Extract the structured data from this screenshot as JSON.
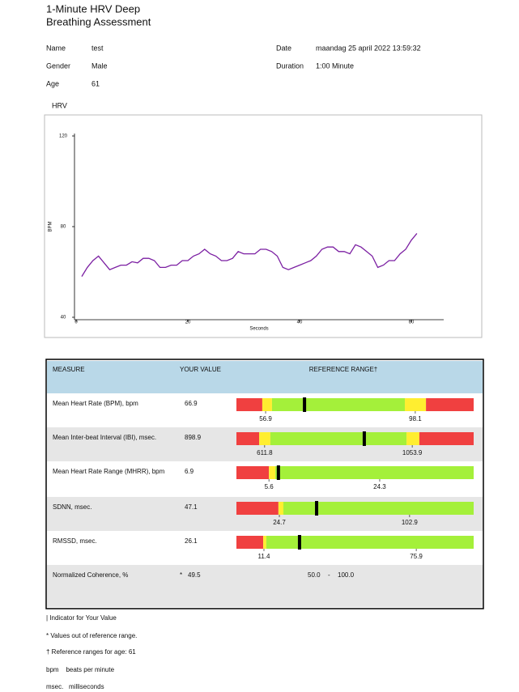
{
  "header": {
    "title_line1": "1-Minute HRV Deep",
    "title_line2": "Breathing Assessment"
  },
  "info": {
    "name_label": "Name",
    "name": "test",
    "gender_label": "Gender",
    "gender": "Male",
    "age_label": "Age",
    "age": "61",
    "date_label": "Date",
    "date": "maandag 25 april 2022 13:59:32",
    "duration_label": "Duration",
    "duration": "1:00 Minute"
  },
  "chart_data": {
    "type": "line",
    "title": "HRV",
    "x_label": "Seconds",
    "y_label": "BPM",
    "x": [
      1,
      2,
      3,
      4,
      5,
      6,
      7,
      8,
      9,
      10,
      11,
      12,
      13,
      14,
      15,
      16,
      17,
      18,
      19,
      20,
      21,
      22,
      23,
      24,
      25,
      26,
      27,
      28,
      29,
      30,
      31,
      32,
      33,
      34,
      35,
      36,
      37,
      38,
      39,
      40,
      41,
      42,
      43,
      44,
      45,
      46,
      47,
      48,
      49,
      50,
      51,
      52,
      53,
      54,
      55,
      56,
      57,
      58,
      59,
      60,
      61
    ],
    "series": [
      {
        "name": "BPM",
        "color": "#7b1fa2",
        "values": [
          58,
          62,
          65,
          67,
          64,
          61,
          62,
          63,
          63,
          64.5,
          64,
          66,
          66,
          65,
          62,
          62,
          63,
          63,
          65,
          65,
          67,
          68,
          70,
          68,
          67,
          65,
          65,
          66,
          69,
          68,
          68,
          68,
          70,
          70,
          69,
          67,
          62,
          61,
          62,
          63,
          64,
          65,
          67,
          70,
          71,
          71,
          69,
          69,
          68,
          72,
          71,
          69,
          67,
          62,
          63,
          65,
          65,
          68,
          70,
          74,
          77
        ]
      }
    ],
    "xlim": [
      -0.3,
      65.8
    ],
    "ylim": [
      40,
      120
    ],
    "xticks": [
      0,
      20,
      40,
      60
    ],
    "yticks": [
      40,
      80,
      120
    ]
  },
  "table": {
    "headers": [
      "MEASURE",
      "YOUR VALUE",
      "REFERENCE RANGE†"
    ],
    "rows": [
      {
        "measure": "Mean Heart Rate (BPM), bpm",
        "value": "66.9",
        "low": "56.9",
        "high": "98.1"
      },
      {
        "measure": "Mean Inter-beat Interval (IBI), msec.",
        "value": "898.9",
        "low": "611.8",
        "high": "1053.9"
      },
      {
        "measure": "Mean Heart Rate Range (MHRR), bpm",
        "value": "6.9",
        "low": "5.6",
        "high": "24.3"
      },
      {
        "measure": "SDNN, msec.",
        "value": "47.1",
        "low": "24.7",
        "high": "102.9"
      },
      {
        "measure": "RMSSD, msec.",
        "value": "26.1",
        "low": "11.4",
        "high": "75.9"
      },
      {
        "measure": "Normalized Coherence, %",
        "flag": "*",
        "value": "49.5",
        "low": "50.0",
        "separator": "-",
        "high": "100.0"
      }
    ]
  },
  "footnotes": [
    "| Indicator for Your Value",
    "* Values out of reference range.",
    "† Reference ranges for age: 61",
    "bpm    beats per minute",
    "msec.   milliseconds"
  ]
}
